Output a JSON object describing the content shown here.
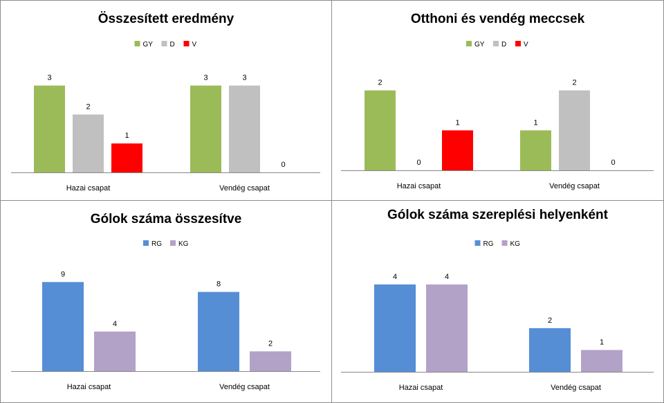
{
  "chart_data": [
    {
      "type": "bar",
      "title": "Összesített eredmény",
      "categories": [
        "Hazai csapat",
        "Vendég csapat"
      ],
      "series": [
        {
          "name": "GY",
          "color": "#9BBB59",
          "values": [
            3,
            3
          ]
        },
        {
          "name": "D",
          "color": "#C0C0C0",
          "values": [
            2,
            3
          ]
        },
        {
          "name": "V",
          "color": "#FF0000",
          "values": [
            1,
            0
          ]
        }
      ],
      "ylim": [
        0,
        3.3
      ],
      "legend": "top",
      "grid": false,
      "data_labels": true
    },
    {
      "type": "bar",
      "title": "Otthoni és vendég meccsek",
      "categories": [
        "Hazai csapat",
        "Vendég csapat"
      ],
      "series": [
        {
          "name": "GY",
          "color": "#9BBB59",
          "values": [
            2,
            1
          ]
        },
        {
          "name": "D",
          "color": "#C0C0C0",
          "values": [
            0,
            2
          ]
        },
        {
          "name": "V",
          "color": "#FF0000",
          "values": [
            1,
            0
          ]
        }
      ],
      "ylim": [
        0,
        2.2
      ],
      "legend": "top",
      "grid": false,
      "data_labels": true
    },
    {
      "type": "bar",
      "title": "Gólok száma összesítve",
      "categories": [
        "Hazai csapat",
        "Vendég csapat"
      ],
      "series": [
        {
          "name": "RG",
          "color": "#558ED5",
          "values": [
            9,
            8
          ]
        },
        {
          "name": "KG",
          "color": "#B3A2C7",
          "values": [
            4,
            2
          ]
        }
      ],
      "ylim": [
        0,
        10
      ],
      "legend": "top",
      "grid": false,
      "data_labels": true
    },
    {
      "type": "bar",
      "title": "Gólok száma szereplési helyenként",
      "categories": [
        "Hazai csapat",
        "Vendég csapat"
      ],
      "series": [
        {
          "name": "RG",
          "color": "#558ED5",
          "values": [
            4,
            2
          ]
        },
        {
          "name": "KG",
          "color": "#B3A2C7",
          "values": [
            4,
            1
          ]
        }
      ],
      "ylim": [
        0,
        4.5
      ],
      "legend": "top",
      "grid": false,
      "data_labels": true
    }
  ]
}
